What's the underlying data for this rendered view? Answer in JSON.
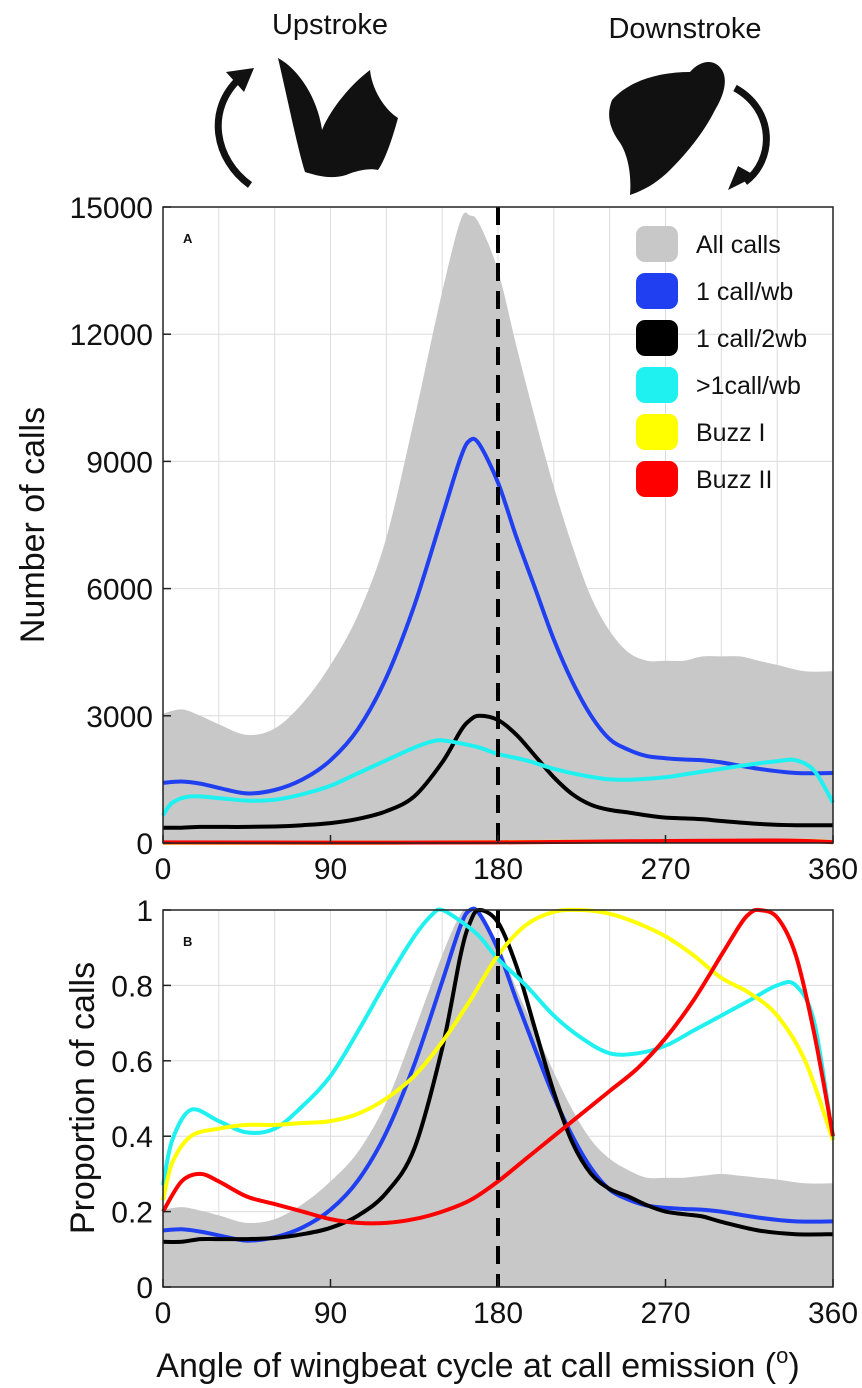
{
  "header": {
    "upstroke_label": "Upstroke",
    "downstroke_label": "Downstroke"
  },
  "icons": [
    "bat-upstroke-icon",
    "bat-downstroke-icon",
    "curved-arrow-up-icon",
    "curved-arrow-down-icon"
  ],
  "colors": {
    "all_calls": "#c8c8c8",
    "one_call_wb": "#1f3ff0",
    "one_call_2wb": "#000000",
    "gt1_call_wb": "#1ff0f0",
    "buzz_1": "#ffff00",
    "buzz_2": "#ff0000"
  },
  "chart_data": [
    {
      "type": "line",
      "panel": "A",
      "xlabel": "",
      "ylabel": "Number of calls",
      "xlim": [
        0,
        360
      ],
      "ylim": [
        0,
        15000
      ],
      "xticks": [
        "0",
        "90",
        "180",
        "270",
        "360"
      ],
      "yticks": [
        "0",
        "3000",
        "6000",
        "9000",
        "12000",
        "15000"
      ],
      "grid": true,
      "legend_position": "top-right",
      "vline_x": 180,
      "series": [
        {
          "name": "All calls",
          "style": "area",
          "x": [
            0,
            10,
            20,
            30,
            45,
            60,
            75,
            90,
            105,
            120,
            135,
            150,
            160,
            165,
            170,
            180,
            190,
            200,
            210,
            220,
            230,
            240,
            250,
            260,
            270,
            280,
            290,
            300,
            310,
            320,
            330,
            345,
            360
          ],
          "y": [
            3050,
            3150,
            3000,
            2800,
            2550,
            2700,
            3300,
            4200,
            5400,
            7200,
            10000,
            13000,
            14700,
            14800,
            14600,
            13500,
            11700,
            10000,
            8400,
            7000,
            5800,
            5000,
            4500,
            4300,
            4300,
            4300,
            4400,
            4400,
            4400,
            4300,
            4200,
            4050,
            4050
          ]
        },
        {
          "name": "1 call/wb",
          "style": "line",
          "x": [
            0,
            10,
            20,
            30,
            45,
            60,
            75,
            90,
            105,
            120,
            135,
            150,
            160,
            165,
            170,
            180,
            190,
            200,
            210,
            220,
            230,
            240,
            250,
            260,
            270,
            280,
            290,
            300,
            320,
            340,
            360
          ],
          "y": [
            1420,
            1450,
            1400,
            1300,
            1170,
            1250,
            1500,
            1950,
            2700,
            3900,
            5600,
            7700,
            9100,
            9500,
            9400,
            8500,
            7200,
            6000,
            4800,
            3800,
            3000,
            2450,
            2200,
            2050,
            2000,
            1970,
            1950,
            1900,
            1750,
            1650,
            1650
          ]
        },
        {
          "name": "1 call/2wb",
          "style": "line",
          "x": [
            0,
            10,
            20,
            30,
            45,
            60,
            75,
            90,
            105,
            120,
            135,
            150,
            160,
            165,
            170,
            180,
            190,
            200,
            210,
            220,
            230,
            240,
            250,
            260,
            270,
            280,
            290,
            300,
            320,
            340,
            360
          ],
          "y": [
            360,
            360,
            380,
            380,
            380,
            390,
            420,
            470,
            570,
            750,
            1100,
            1900,
            2650,
            2900,
            3000,
            2900,
            2550,
            2050,
            1550,
            1150,
            900,
            780,
            720,
            650,
            600,
            580,
            560,
            520,
            450,
            420,
            420
          ]
        },
        {
          "name": ">1call/wb",
          "style": "line",
          "x": [
            0,
            5,
            15,
            30,
            45,
            60,
            75,
            90,
            105,
            120,
            135,
            145,
            150,
            160,
            170,
            180,
            195,
            210,
            225,
            240,
            255,
            270,
            285,
            300,
            315,
            330,
            340,
            350,
            360
          ],
          "y": [
            650,
            950,
            1100,
            1060,
            1000,
            1020,
            1150,
            1350,
            1650,
            1950,
            2250,
            2400,
            2420,
            2350,
            2250,
            2100,
            1950,
            1750,
            1600,
            1500,
            1500,
            1550,
            1650,
            1750,
            1850,
            1930,
            1950,
            1700,
            950
          ]
        },
        {
          "name": "Buzz I",
          "style": "line",
          "x": [
            0,
            90,
            180,
            270,
            340,
            360
          ],
          "y": [
            5,
            8,
            20,
            40,
            55,
            20
          ]
        },
        {
          "name": "Buzz II",
          "style": "line",
          "x": [
            0,
            90,
            180,
            250,
            330,
            360
          ],
          "y": [
            15,
            10,
            15,
            40,
            60,
            20
          ]
        }
      ]
    },
    {
      "type": "line",
      "panel": "B",
      "xlabel": "Angle of wingbeat cycle at call emission (o)",
      "ylabel": "Proportion of calls",
      "xlim": [
        0,
        360
      ],
      "ylim": [
        0,
        1
      ],
      "xticks": [
        "0",
        "90",
        "180",
        "270",
        "360"
      ],
      "yticks": [
        "0",
        "0.2",
        "0.4",
        "0.6",
        "0.8",
        "1"
      ],
      "grid": true,
      "vline_x": 180,
      "series": [
        {
          "name": "All calls",
          "style": "area",
          "x": [
            0,
            10,
            20,
            30,
            45,
            60,
            75,
            90,
            105,
            120,
            135,
            150,
            160,
            165,
            170,
            180,
            190,
            200,
            210,
            220,
            230,
            240,
            250,
            260,
            270,
            280,
            290,
            300,
            310,
            320,
            330,
            345,
            360
          ],
          "y": [
            0.205,
            0.212,
            0.203,
            0.19,
            0.17,
            0.18,
            0.22,
            0.28,
            0.36,
            0.49,
            0.68,
            0.88,
            0.99,
            1.0,
            0.99,
            0.91,
            0.79,
            0.68,
            0.57,
            0.47,
            0.39,
            0.34,
            0.31,
            0.29,
            0.29,
            0.29,
            0.295,
            0.3,
            0.295,
            0.29,
            0.285,
            0.275,
            0.275
          ]
        },
        {
          "name": "1 call/wb",
          "style": "line",
          "x": [
            0,
            10,
            20,
            30,
            45,
            60,
            75,
            90,
            105,
            120,
            135,
            150,
            160,
            165,
            170,
            180,
            190,
            200,
            210,
            220,
            230,
            240,
            250,
            260,
            270,
            280,
            290,
            300,
            320,
            340,
            360
          ],
          "y": [
            0.15,
            0.153,
            0.147,
            0.137,
            0.123,
            0.132,
            0.158,
            0.205,
            0.284,
            0.41,
            0.59,
            0.81,
            0.96,
            1.0,
            0.99,
            0.895,
            0.76,
            0.63,
            0.505,
            0.4,
            0.315,
            0.258,
            0.232,
            0.216,
            0.21,
            0.207,
            0.205,
            0.2,
            0.184,
            0.174,
            0.174
          ]
        },
        {
          "name": "1 call/2wb",
          "style": "line",
          "x": [
            0,
            10,
            20,
            30,
            45,
            60,
            75,
            90,
            105,
            120,
            135,
            150,
            160,
            165,
            170,
            180,
            190,
            200,
            210,
            220,
            230,
            240,
            250,
            260,
            270,
            280,
            290,
            300,
            320,
            340,
            360
          ],
          "y": [
            0.12,
            0.12,
            0.127,
            0.127,
            0.127,
            0.13,
            0.14,
            0.157,
            0.19,
            0.25,
            0.367,
            0.633,
            0.883,
            0.967,
            1.0,
            0.967,
            0.85,
            0.683,
            0.517,
            0.383,
            0.3,
            0.26,
            0.24,
            0.217,
            0.2,
            0.193,
            0.187,
            0.173,
            0.15,
            0.14,
            0.14
          ]
        },
        {
          "name": ">1call/wb",
          "style": "line",
          "x": [
            0,
            5,
            15,
            30,
            45,
            60,
            75,
            90,
            105,
            120,
            135,
            145,
            150,
            160,
            170,
            180,
            195,
            210,
            225,
            240,
            255,
            270,
            285,
            300,
            315,
            330,
            340,
            350,
            360
          ],
          "y": [
            0.27,
            0.39,
            0.47,
            0.44,
            0.41,
            0.42,
            0.48,
            0.56,
            0.68,
            0.81,
            0.93,
            0.99,
            1.0,
            0.97,
            0.93,
            0.87,
            0.8,
            0.72,
            0.66,
            0.62,
            0.62,
            0.64,
            0.68,
            0.72,
            0.76,
            0.8,
            0.8,
            0.7,
            0.39
          ]
        },
        {
          "name": "Buzz I",
          "style": "line",
          "x": [
            0,
            5,
            15,
            30,
            45,
            60,
            75,
            90,
            105,
            120,
            135,
            150,
            165,
            180,
            195,
            210,
            225,
            240,
            255,
            270,
            285,
            300,
            315,
            330,
            345,
            360
          ],
          "y": [
            0.23,
            0.33,
            0.4,
            0.42,
            0.43,
            0.43,
            0.435,
            0.44,
            0.46,
            0.5,
            0.56,
            0.65,
            0.76,
            0.88,
            0.96,
            0.995,
            1.0,
            0.99,
            0.965,
            0.93,
            0.88,
            0.82,
            0.78,
            0.72,
            0.6,
            0.39
          ]
        },
        {
          "name": "Buzz II",
          "style": "line",
          "x": [
            0,
            10,
            20,
            30,
            45,
            60,
            75,
            90,
            105,
            120,
            135,
            150,
            165,
            180,
            195,
            210,
            225,
            240,
            255,
            270,
            285,
            300,
            310,
            315,
            320,
            330,
            340,
            350,
            360
          ],
          "y": [
            0.2,
            0.28,
            0.3,
            0.28,
            0.24,
            0.22,
            0.2,
            0.18,
            0.17,
            0.17,
            0.18,
            0.2,
            0.23,
            0.28,
            0.34,
            0.4,
            0.46,
            0.52,
            0.58,
            0.66,
            0.76,
            0.88,
            0.96,
            0.99,
            1.0,
            0.98,
            0.88,
            0.67,
            0.4
          ]
        }
      ]
    }
  ]
}
